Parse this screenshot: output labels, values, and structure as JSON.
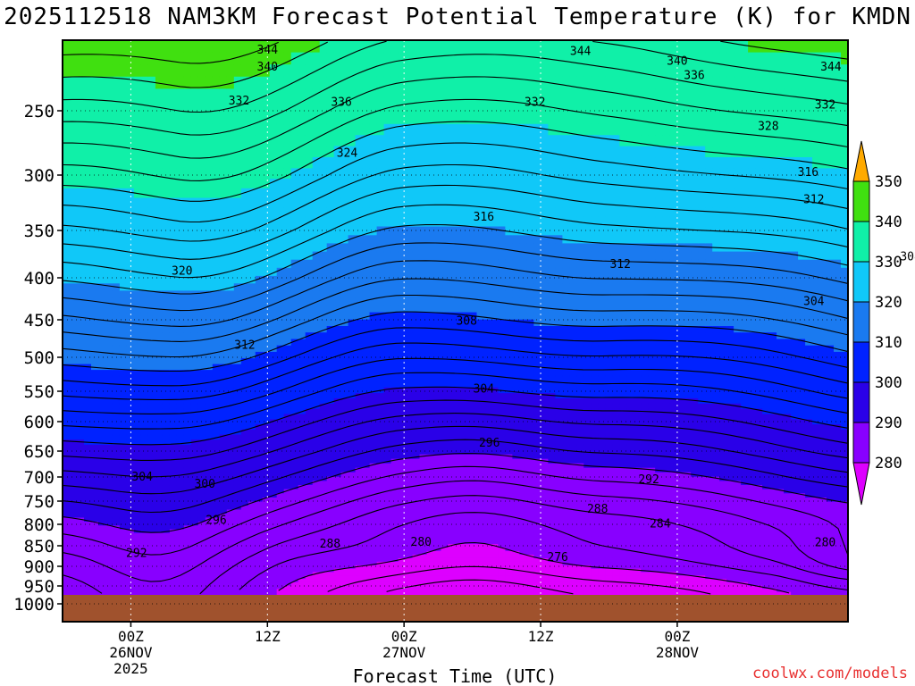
{
  "title": "2025112518 NAM3KM Forecast Potential Temperature (K) for KMDN",
  "credit": "coolwx.com/models",
  "chart_data": {
    "type": "heatmap",
    "title": "2025112518 NAM3KM Forecast Potential Temperature (K) for KMDN",
    "xlabel": "Forecast Time (UTC)",
    "ylabel": "",
    "xlim": [
      "2025-11-25T18:00Z",
      "2025-11-28T15:00Z"
    ],
    "ylim": [
      1000,
      200
    ],
    "y_ticks": [
      250,
      300,
      350,
      400,
      450,
      500,
      550,
      600,
      650,
      700,
      750,
      800,
      850,
      900,
      950,
      1000
    ],
    "x_ticks": [
      {
        "time": "2025-11-26T00:00Z",
        "label1": "00Z",
        "label2": "26NOV",
        "label3": "2025"
      },
      {
        "time": "2025-11-26T12:00Z",
        "label1": "12Z",
        "label2": "",
        "label3": ""
      },
      {
        "time": "2025-11-27T00:00Z",
        "label1": "00Z",
        "label2": "27NOV",
        "label3": ""
      },
      {
        "time": "2025-11-27T12:00Z",
        "label1": "12Z",
        "label2": "",
        "label3": ""
      },
      {
        "time": "2025-11-28T00:00Z",
        "label1": "00Z",
        "label2": "28NOV",
        "label3": ""
      }
    ],
    "grid": true,
    "surface_pressure": 975,
    "colorbar": {
      "placement": "right",
      "levels": [
        280,
        290,
        300,
        310,
        320,
        330,
        340,
        350
      ],
      "colors": [
        "#8800ff",
        "#2a00e8",
        "#0022ff",
        "#1a7af0",
        "#10c8f8",
        "#10f0a8",
        "#40e010",
        "#ffff10"
      ],
      "under_color": "#dd00ff",
      "over_color": "#ffaa00"
    },
    "contour_interval": 2,
    "contour_labels": [
      {
        "text": "344",
        "time_h": 18.0,
        "p": 207
      },
      {
        "text": "340",
        "time_h": 18.0,
        "p": 219
      },
      {
        "text": "332",
        "time_h": 15.5,
        "p": 243
      },
      {
        "text": "336",
        "time_h": 24.5,
        "p": 244
      },
      {
        "text": "344",
        "time_h": 45.5,
        "p": 208
      },
      {
        "text": "340",
        "time_h": 54.0,
        "p": 215
      },
      {
        "text": "336",
        "time_h": 55.5,
        "p": 225
      },
      {
        "text": "332",
        "time_h": 41.5,
        "p": 244
      },
      {
        "text": "344",
        "time_h": 67.5,
        "p": 219
      },
      {
        "text": "332",
        "time_h": 67.0,
        "p": 246
      },
      {
        "text": "328",
        "time_h": 62.0,
        "p": 262
      },
      {
        "text": "324",
        "time_h": 25.0,
        "p": 283
      },
      {
        "text": "320",
        "time_h": 77.5,
        "p": 283
      },
      {
        "text": "316",
        "time_h": 65.5,
        "p": 298
      },
      {
        "text": "312",
        "time_h": 66.0,
        "p": 322
      },
      {
        "text": "316",
        "time_h": 37.0,
        "p": 338
      },
      {
        "text": "312",
        "time_h": 49.0,
        "p": 386
      },
      {
        "text": "308",
        "time_h": 74.5,
        "p": 378
      },
      {
        "text": "320",
        "time_h": 10.5,
        "p": 393
      },
      {
        "text": "304",
        "time_h": 66.0,
        "p": 428
      },
      {
        "text": "308",
        "time_h": 35.5,
        "p": 452
      },
      {
        "text": "312",
        "time_h": 16.0,
        "p": 484
      },
      {
        "text": "304",
        "time_h": 37.0,
        "p": 547
      },
      {
        "text": "296",
        "time_h": 37.5,
        "p": 636
      },
      {
        "text": "304",
        "time_h": 7.0,
        "p": 700
      },
      {
        "text": "300",
        "time_h": 12.5,
        "p": 715
      },
      {
        "text": "292",
        "time_h": 51.5,
        "p": 706
      },
      {
        "text": "288",
        "time_h": 47.0,
        "p": 767
      },
      {
        "text": "296",
        "time_h": 13.5,
        "p": 791
      },
      {
        "text": "284",
        "time_h": 52.5,
        "p": 799
      },
      {
        "text": "288",
        "time_h": 23.5,
        "p": 846
      },
      {
        "text": "280",
        "time_h": 31.5,
        "p": 842
      },
      {
        "text": "280",
        "time_h": 67.0,
        "p": 843
      },
      {
        "text": "292",
        "time_h": 6.5,
        "p": 868
      },
      {
        "text": "276",
        "time_h": 43.5,
        "p": 878
      },
      {
        "text": "276",
        "time_h": 77.5,
        "p": 878
      }
    ]
  }
}
